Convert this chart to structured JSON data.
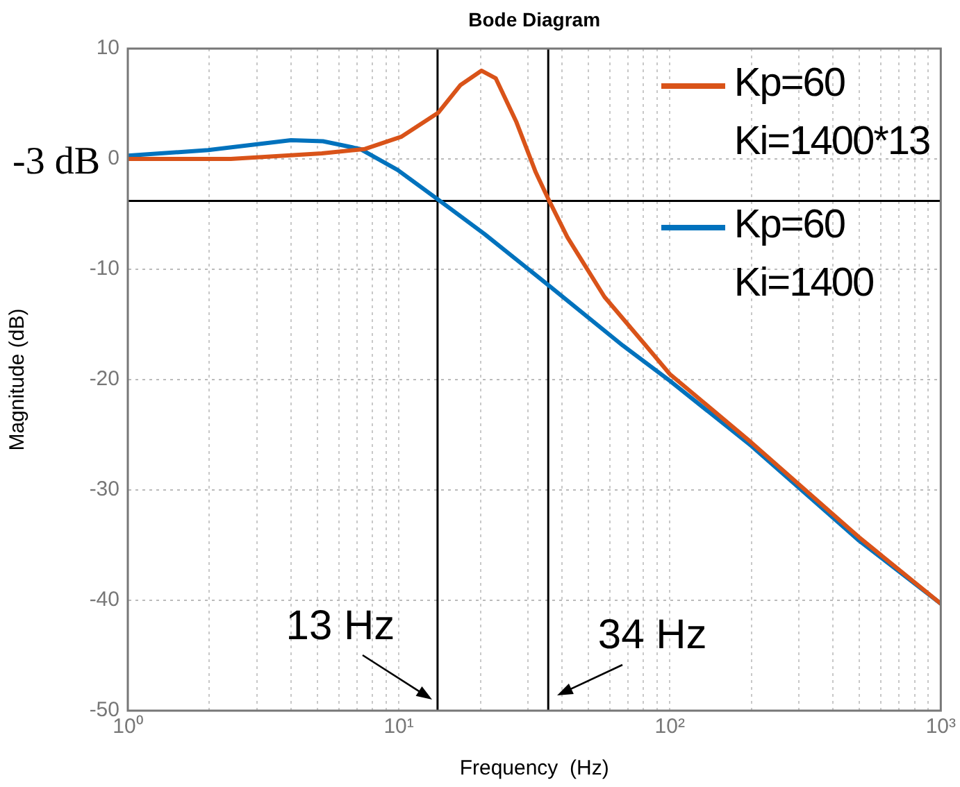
{
  "chart_data": {
    "type": "line",
    "title": "Bode Diagram",
    "xlabel": "Frequency  (Hz)",
    "ylabel": "Magnitude (dB)",
    "log": "x",
    "grid": true,
    "legend": "top right",
    "marker": "none",
    "line_style": "solid",
    "xlim": [
      1,
      1000
    ],
    "ylim": [
      -50,
      10
    ],
    "xticks": [
      {
        "value": 1,
        "label": "10⁰"
      },
      {
        "value": 2,
        "label": null
      },
      {
        "value": 3,
        "label": null
      },
      {
        "value": 4,
        "label": null
      },
      {
        "value": 5,
        "label": null
      },
      {
        "value": 6,
        "label": null
      },
      {
        "value": 7,
        "label": null
      },
      {
        "value": 8,
        "label": null
      },
      {
        "value": 9,
        "label": null
      },
      {
        "value": 10,
        "label": "10¹"
      },
      {
        "value": 20,
        "label": null
      },
      {
        "value": 30,
        "label": null
      },
      {
        "value": 40,
        "label": null
      },
      {
        "value": 50,
        "label": null
      },
      {
        "value": 60,
        "label": null
      },
      {
        "value": 70,
        "label": null
      },
      {
        "value": 80,
        "label": null
      },
      {
        "value": 90,
        "label": null
      },
      {
        "value": 100,
        "label": "10²"
      },
      {
        "value": 200,
        "label": null
      },
      {
        "value": 300,
        "label": null
      },
      {
        "value": 400,
        "label": null
      },
      {
        "value": 500,
        "label": null
      },
      {
        "value": 600,
        "label": null
      },
      {
        "value": 700,
        "label": null
      },
      {
        "value": 800,
        "label": null
      },
      {
        "value": 900,
        "label": null
      },
      {
        "value": 1000,
        "label": "10³"
      }
    ],
    "yticks": [
      -50,
      -40,
      -30,
      -20,
      -10,
      0,
      10
    ],
    "series": [
      {
        "name": "Kp=60\nKi=1400*13",
        "color": "#d95319",
        "x": [
          1,
          2.4,
          5.2,
          7.5,
          10.2,
          14,
          16.9,
          20.2,
          22.8,
          27.1,
          32,
          35.9,
          41.9,
          57.4,
          81.5,
          100,
          200,
          500,
          1000
        ],
        "values": [
          0,
          0,
          0.5,
          0.9,
          2,
          4.2,
          6.7,
          8,
          7.3,
          3.4,
          -1.2,
          -3.8,
          -7.1,
          -12.5,
          -16.9,
          -19.5,
          -25.7,
          -34.3,
          -40.3
        ]
      },
      {
        "name": "Kp=60\nKi=1400",
        "color": "#0072bd",
        "x": [
          1,
          1.98,
          4,
          5.25,
          7.2,
          9.9,
          14,
          20.7,
          35.9,
          67,
          100,
          200,
          500,
          1000
        ],
        "values": [
          0.3,
          0.8,
          1.7,
          1.6,
          0.9,
          -1,
          -3.7,
          -6.8,
          -11.5,
          -16.9,
          -20.1,
          -26,
          -34.6,
          -40.3
        ]
      }
    ],
    "ref_lines": [
      {
        "axis": "y",
        "value": -3.8,
        "label": "-3 dB",
        "color": "#000000"
      },
      {
        "axis": "x",
        "value": 13.9,
        "color": "#000000"
      },
      {
        "axis": "x",
        "value": 35.6,
        "color": "#000000"
      }
    ],
    "annotations": [
      {
        "text": "13 Hz",
        "x": 13.9,
        "y": -49
      },
      {
        "text": "34 Hz",
        "x": 35.6,
        "y": -48.6
      }
    ]
  }
}
